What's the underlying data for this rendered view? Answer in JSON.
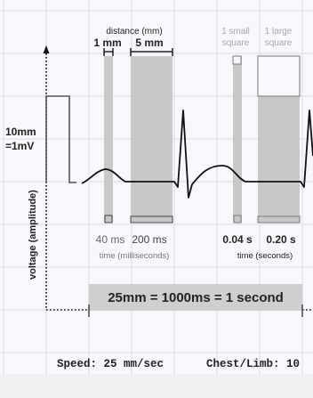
{
  "calibration": {
    "line1": "10mm",
    "line2": "=1mV"
  },
  "voltage_axis_label": "voltage (amplitude)",
  "distance": {
    "header": "distance (mm)",
    "small_label": "1 mm",
    "large_label": "5 mm"
  },
  "squares": {
    "small_line1": "1 small",
    "small_line2": "square",
    "large_line1": "1 large",
    "large_line2": "square"
  },
  "time_ms": {
    "small_value": "40 ms",
    "large_value": "200 ms",
    "caption": "time (milliseconds)"
  },
  "time_s": {
    "small_value": "0.04 s",
    "large_value": "0.20 s",
    "caption": "time (seconds)"
  },
  "scale_bar_text": "25mm = 1000ms = 1 second",
  "footer": {
    "speed_text": "Speed: 25 mm/sec",
    "lead_text": "Chest/Limb: 10"
  },
  "colors": {
    "grid_line": "#dadde6",
    "grid_background": "#f7f8fb",
    "shade": "#c8c8c8",
    "ecg_trace": "#111111",
    "scale_bar": "#cfcfcf",
    "faded_label": "#a8a8a8",
    "footer_band": "#efeff1"
  }
}
